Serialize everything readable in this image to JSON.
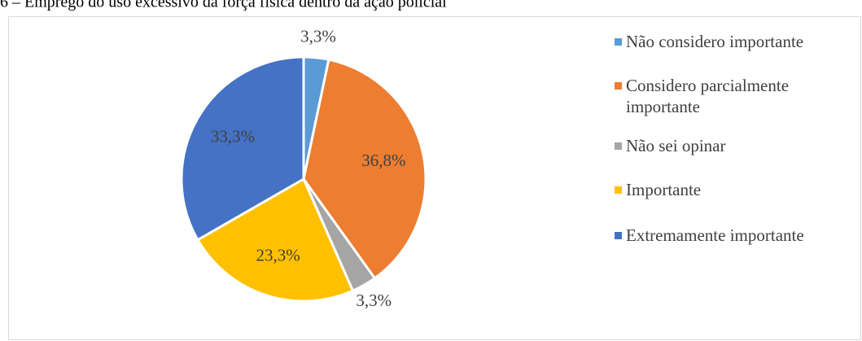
{
  "chart_data": {
    "type": "pie",
    "title": "6 – Emprego do uso excessivo da força física dentro da ação policial",
    "categories": [
      "Não considero importante",
      "Considero parcialmente importante",
      "Não sei opinar",
      "Importante",
      "Extremamente importante"
    ],
    "values": [
      3.3,
      36.8,
      3.3,
      23.3,
      33.3
    ],
    "value_labels": [
      "3,3%",
      "36,8%",
      "3,3%",
      "23,3%",
      "33,3%"
    ],
    "colors": [
      "#5b9bd5",
      "#ed7d31",
      "#a5a5a5",
      "#ffc000",
      "#4472c4"
    ],
    "legend": "right"
  }
}
